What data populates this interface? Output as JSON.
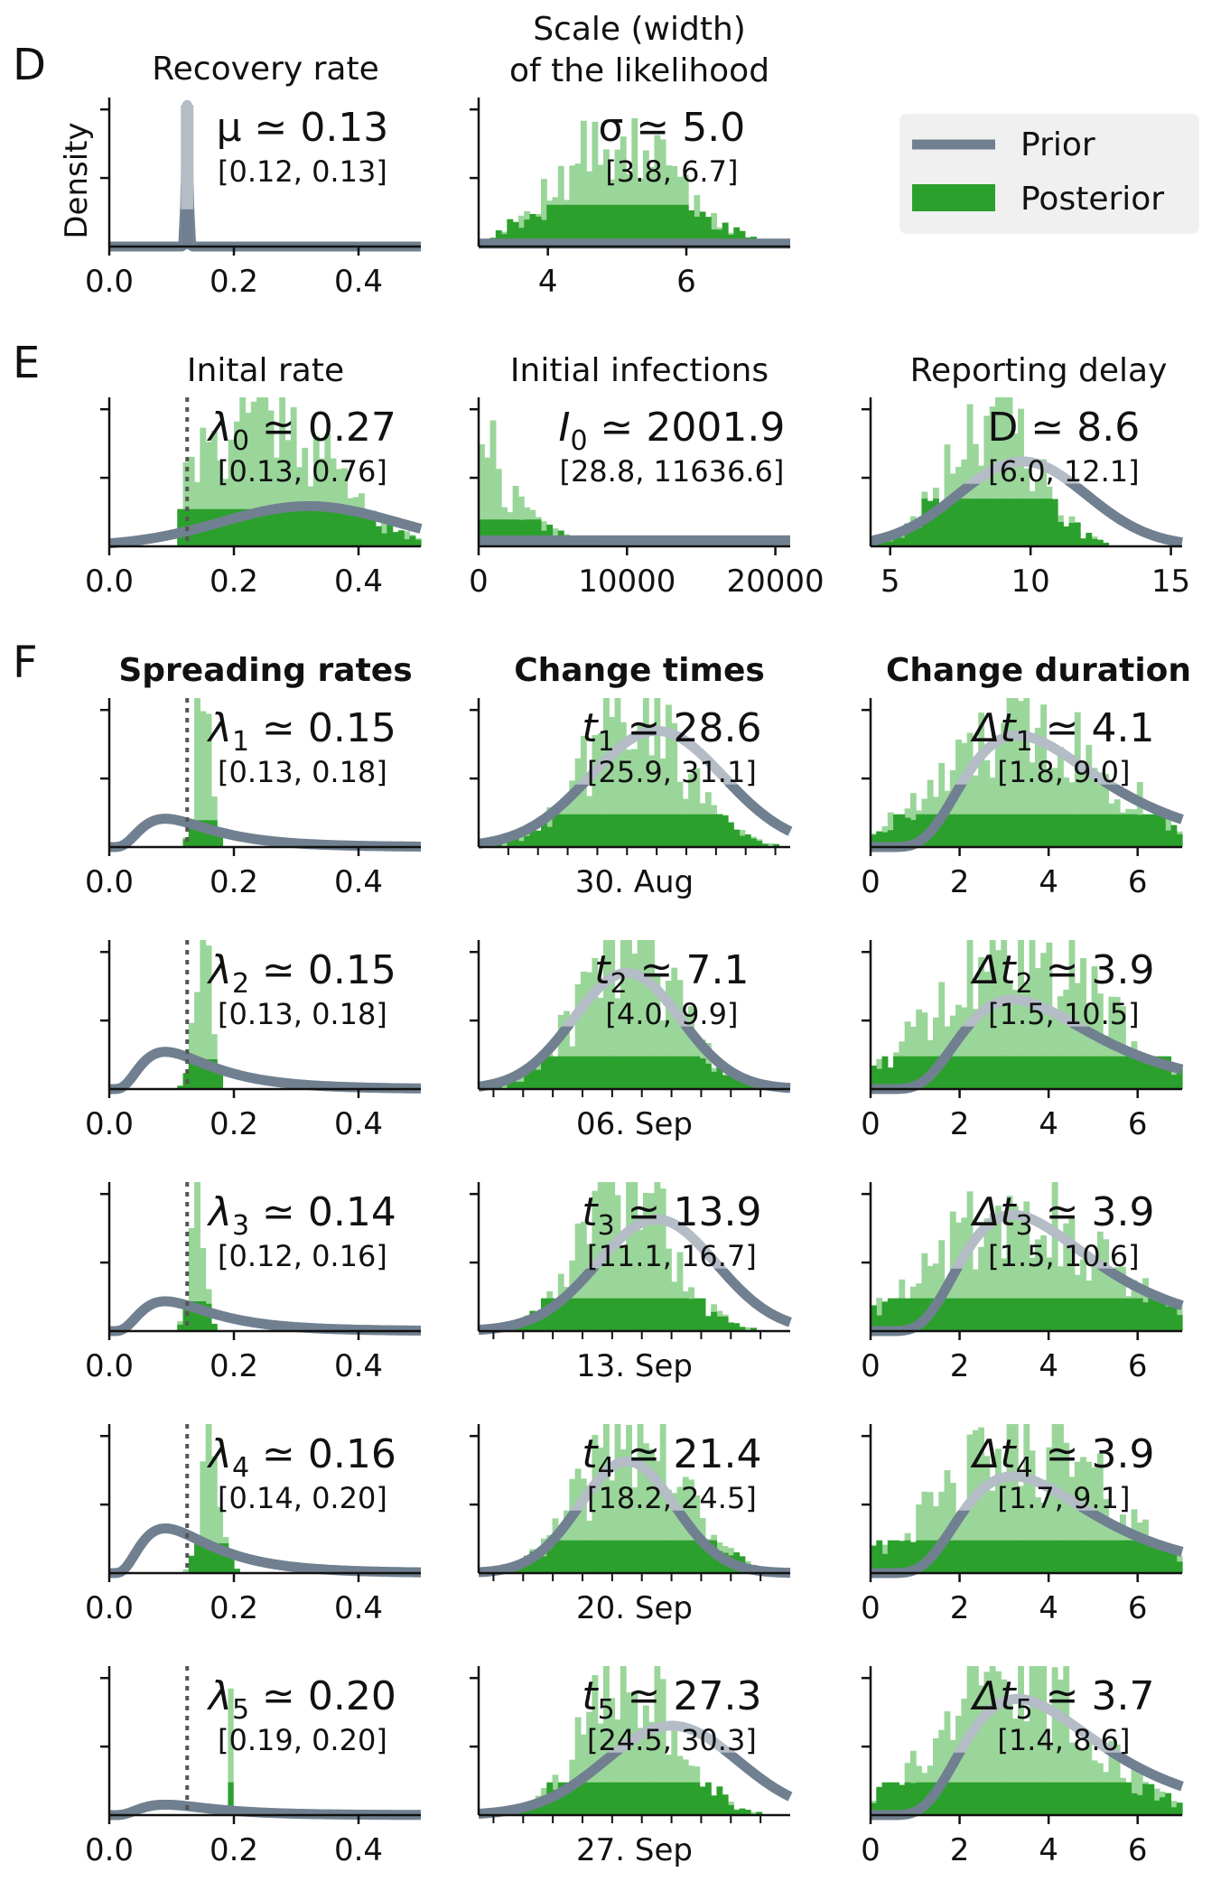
{
  "colors": {
    "prior": "#708090",
    "prior_light": "#b4bcc6",
    "posterior": "#2ca02c",
    "posterior_light": "#9ad69a",
    "marker": "#555555",
    "legend_bg": "#f0f0f0"
  },
  "panel_letters": [
    "D",
    "E",
    "F"
  ],
  "legend": {
    "prior_label": "Prior",
    "posterior_label": "Posterior"
  },
  "chart_data": [
    {
      "id": "recovery",
      "type": "histogram+density",
      "title": "Recovery rate",
      "ylabel": "Density",
      "estimate_label": "μ ≃ 0.13",
      "interval_label": "[0.12, 0.13]",
      "xlim": [
        0,
        0.5
      ],
      "xticks": [
        0.0,
        0.2,
        0.4
      ],
      "xtick_labels": [
        "0.0",
        "0.2",
        "0.4"
      ],
      "prior": {
        "kind": "spike",
        "mean": 0.125,
        "sd": 0.002,
        "peak": 0.95
      },
      "posterior": {
        "kind": "spike",
        "x": 0.125,
        "height": 0.25
      }
    },
    {
      "id": "scale",
      "type": "histogram+density",
      "title_lines": [
        "Scale (width)",
        "of the likelihood"
      ],
      "estimate_label": "σ ≃ 5.0",
      "interval_label": "[3.8, 6.7]",
      "xlim": [
        3.0,
        7.5
      ],
      "xticks": [
        4,
        6
      ],
      "xtick_labels": [
        "4",
        "6"
      ],
      "prior": {
        "kind": "flat",
        "level": 0.02
      },
      "posterior": {
        "kind": "hist",
        "mean": 5.0,
        "sd": 0.85,
        "peak": 0.7,
        "threshold": 0.28
      }
    },
    {
      "id": "initial-rate",
      "type": "histogram+density",
      "title": "Inital rate",
      "estimate_label": "λ0 ≃ 0.27",
      "estimate_main": "λ",
      "estimate_sub": "0",
      "estimate_value": " ≃ 0.27",
      "interval_label": "[0.13, 0.76]",
      "xlim": [
        0,
        0.5
      ],
      "xticks": [
        0.0,
        0.2,
        0.4
      ],
      "xtick_labels": [
        "0.0",
        "0.2",
        "0.4"
      ],
      "marker_x": 0.125,
      "prior": {
        "kind": "gauss",
        "mean": 0.32,
        "sd": 0.14,
        "peak": 0.27
      },
      "posterior": {
        "kind": "hist",
        "mean": 0.25,
        "sd": 0.1,
        "peak": 0.95,
        "threshold": 0.25,
        "min": 0.11
      }
    },
    {
      "id": "initial-infections",
      "type": "histogram+density",
      "title": "Initial infections",
      "estimate_label": "I0 ≃ 2001.9",
      "estimate_main": "I",
      "estimate_sub": "0",
      "estimate_value": " ≃ 2001.9",
      "interval_label": "[28.8, 11636.6]",
      "xlim": [
        0,
        21000
      ],
      "xticks": [
        0,
        10000,
        20000
      ],
      "xtick_labels": [
        "0",
        "10000",
        "20000"
      ],
      "prior": {
        "kind": "flat",
        "level": 0.04
      },
      "posterior": {
        "kind": "exp",
        "scale": 2200,
        "peak": 0.97,
        "threshold": 0.18
      }
    },
    {
      "id": "reporting-delay",
      "type": "histogram+density",
      "title": "Reporting delay",
      "estimate_label": "D ≃ 8.6",
      "interval_label": "[6.0, 12.1]",
      "xlim": [
        4.3,
        15.4
      ],
      "xticks": [
        5,
        10,
        15
      ],
      "xtick_labels": [
        "5",
        "10",
        "15"
      ],
      "prior": {
        "kind": "gauss",
        "mean": 9.7,
        "sd": 2.3,
        "peak": 0.57
      },
      "posterior": {
        "kind": "hist",
        "mean": 8.6,
        "sd": 1.5,
        "peak": 0.95,
        "threshold": 0.32
      }
    }
  ],
  "column_headers": [
    "Spreading rates",
    "Change times",
    "Change duration"
  ],
  "rows": [
    {
      "rate": {
        "estimate_main": "λ",
        "estimate_sub": "1",
        "estimate_value": " ≃ 0.15",
        "interval_label": "[0.13, 0.18]",
        "xtick_labels": [
          "0.0",
          "0.2",
          "0.4"
        ],
        "xticks": [
          0.0,
          0.2,
          0.4
        ],
        "xlim": [
          0,
          0.5
        ],
        "marker_x": 0.125,
        "prior": {
          "kind": "logn",
          "mode": 0.09,
          "spread": 0.6,
          "peak": 0.19
        },
        "posterior": {
          "kind": "hist",
          "mean": 0.15,
          "sd": 0.012,
          "peak": 0.95,
          "threshold": 0.18
        }
      },
      "time": {
        "estimate_main": "t",
        "estimate_sub": "1",
        "estimate_value": " ≃ 28.6",
        "interval_label": "[25.9, 31.1]",
        "date_label": "30. Aug",
        "xlim": [
          18,
          39
        ],
        "minor_ticks": [
          20,
          22,
          24,
          26,
          28,
          30,
          32,
          34,
          36,
          38
        ],
        "prior": {
          "kind": "gauss",
          "mean": 30.0,
          "sd": 4.5,
          "peak": 0.78
        },
        "posterior": {
          "kind": "hist",
          "mean": 28.6,
          "sd": 3.3,
          "peak": 0.95,
          "threshold": 0.22
        }
      },
      "duration": {
        "estimate_main": "Δt",
        "estimate_sub": "1",
        "estimate_value": " ≃ 4.1",
        "interval_label": "[1.8, 9.0]",
        "xlim": [
          0,
          7
        ],
        "xticks": [
          0,
          2,
          4,
          6
        ],
        "xtick_labels": [
          "0",
          "2",
          "4",
          "6"
        ],
        "prior": {
          "kind": "logn",
          "mode": 3.3,
          "spread": 0.45,
          "peak": 0.75
        },
        "posterior": {
          "kind": "hist",
          "mean": 3.6,
          "sd": 1.8,
          "peak": 0.8,
          "threshold": 0.22
        }
      }
    },
    {
      "rate": {
        "estimate_main": "λ",
        "estimate_sub": "2",
        "estimate_value": " ≃ 0.15",
        "interval_label": "[0.13, 0.18]",
        "xtick_labels": [
          "0.0",
          "0.2",
          "0.4"
        ],
        "xticks": [
          0.0,
          0.2,
          0.4
        ],
        "xlim": [
          0,
          0.5
        ],
        "marker_x": 0.125,
        "prior": {
          "kind": "logn",
          "mode": 0.09,
          "spread": 0.6,
          "peak": 0.25
        },
        "posterior": {
          "kind": "hist",
          "mean": 0.15,
          "sd": 0.013,
          "peak": 0.95,
          "threshold": 0.2
        }
      },
      "time": {
        "estimate_main": "t",
        "estimate_sub": "2",
        "estimate_value": " ≃ 7.1",
        "interval_label": "[4.0, 9.9]",
        "date_label": "06. Sep",
        "xlim": [
          -3,
          18
        ],
        "minor_ticks": [
          -2,
          0,
          2,
          4,
          6,
          8,
          10,
          12,
          14,
          16
        ],
        "prior": {
          "kind": "gauss",
          "mean": 7.0,
          "sd": 3.6,
          "peak": 0.78
        },
        "posterior": {
          "kind": "hist",
          "mean": 7.1,
          "sd": 3.2,
          "peak": 0.95,
          "threshold": 0.22
        }
      },
      "duration": {
        "estimate_main": "Δt",
        "estimate_sub": "2",
        "estimate_value": " ≃ 3.9",
        "interval_label": "[1.5, 10.5]",
        "xlim": [
          0,
          7
        ],
        "xticks": [
          0,
          2,
          4,
          6
        ],
        "xtick_labels": [
          "0",
          "2",
          "4",
          "6"
        ],
        "prior": {
          "kind": "logn",
          "mode": 3.2,
          "spread": 0.45,
          "peak": 0.6
        },
        "posterior": {
          "kind": "hist",
          "mean": 3.4,
          "sd": 1.8,
          "peak": 0.95,
          "threshold": 0.22
        }
      }
    },
    {
      "rate": {
        "estimate_main": "λ",
        "estimate_sub": "3",
        "estimate_value": " ≃ 0.14",
        "interval_label": "[0.12, 0.16]",
        "xtick_labels": [
          "0.0",
          "0.2",
          "0.4"
        ],
        "xticks": [
          0.0,
          0.2,
          0.4
        ],
        "xlim": [
          0,
          0.5
        ],
        "marker_x": 0.125,
        "prior": {
          "kind": "logn",
          "mode": 0.09,
          "spread": 0.6,
          "peak": 0.2
        },
        "posterior": {
          "kind": "hist",
          "mean": 0.14,
          "sd": 0.011,
          "peak": 0.95,
          "threshold": 0.2
        }
      },
      "time": {
        "estimate_main": "t",
        "estimate_sub": "3",
        "estimate_value": " ≃ 13.9",
        "interval_label": "[11.1, 16.7]",
        "date_label": "13. Sep",
        "xlim": [
          4,
          25
        ],
        "minor_ticks": [
          5,
          7,
          9,
          11,
          13,
          15,
          17,
          19,
          21,
          23
        ],
        "prior": {
          "kind": "gauss",
          "mean": 16.0,
          "sd": 4.0,
          "peak": 0.75
        },
        "posterior": {
          "kind": "hist",
          "mean": 13.9,
          "sd": 3.0,
          "peak": 0.95,
          "threshold": 0.22
        }
      },
      "duration": {
        "estimate_main": "Δt",
        "estimate_sub": "3",
        "estimate_value": " ≃ 3.9",
        "interval_label": "[1.5, 10.6]",
        "xlim": [
          0,
          7
        ],
        "xticks": [
          0,
          2,
          4,
          6
        ],
        "xtick_labels": [
          "0",
          "2",
          "4",
          "6"
        ],
        "prior": {
          "kind": "logn",
          "mode": 3.2,
          "spread": 0.45,
          "peak": 0.78
        },
        "posterior": {
          "kind": "hist",
          "mean": 3.4,
          "sd": 1.8,
          "peak": 0.85,
          "threshold": 0.22
        }
      }
    },
    {
      "rate": {
        "estimate_main": "λ",
        "estimate_sub": "4",
        "estimate_value": " ≃ 0.16",
        "interval_label": "[0.14, 0.20]",
        "xtick_labels": [
          "0.0",
          "0.2",
          "0.4"
        ],
        "xticks": [
          0.0,
          0.2,
          0.4
        ],
        "xlim": [
          0,
          0.5
        ],
        "marker_x": 0.125,
        "prior": {
          "kind": "logn",
          "mode": 0.09,
          "spread": 0.6,
          "peak": 0.3
        },
        "posterior": {
          "kind": "hist",
          "mean": 0.165,
          "sd": 0.015,
          "peak": 0.95,
          "threshold": 0.2
        }
      },
      "time": {
        "estimate_main": "t",
        "estimate_sub": "4",
        "estimate_value": " ≃ 21.4",
        "interval_label": "[18.2, 24.5]",
        "date_label": "20. Sep",
        "xlim": [
          11,
          32
        ],
        "minor_ticks": [
          12,
          14,
          16,
          18,
          20,
          22,
          24,
          26,
          28,
          30
        ],
        "prior": {
          "kind": "gauss",
          "mean": 21.0,
          "sd": 3.2,
          "peak": 0.75
        },
        "posterior": {
          "kind": "hist",
          "mean": 21.4,
          "sd": 3.3,
          "peak": 0.95,
          "threshold": 0.22
        }
      },
      "duration": {
        "estimate_main": "Δt",
        "estimate_sub": "4",
        "estimate_value": " ≃ 3.9",
        "interval_label": "[1.7, 9.1]",
        "xlim": [
          0,
          7
        ],
        "xticks": [
          0,
          2,
          4,
          6
        ],
        "xtick_labels": [
          "0",
          "2",
          "4",
          "6"
        ],
        "prior": {
          "kind": "logn",
          "mode": 3.2,
          "spread": 0.45,
          "peak": 0.65
        },
        "posterior": {
          "kind": "hist",
          "mean": 3.5,
          "sd": 1.8,
          "peak": 0.85,
          "threshold": 0.22
        }
      }
    },
    {
      "rate": {
        "estimate_main": "λ",
        "estimate_sub": "5",
        "estimate_value": " ≃ 0.20",
        "interval_label": "[0.19, 0.20]",
        "xtick_labels": [
          "0.0",
          "0.2",
          "0.4"
        ],
        "xticks": [
          0.0,
          0.2,
          0.4
        ],
        "xlim": [
          0,
          0.5
        ],
        "marker_x": 0.125,
        "prior": {
          "kind": "logn",
          "mode": 0.09,
          "spread": 0.6,
          "peak": 0.07
        },
        "posterior": {
          "kind": "spike",
          "x": 0.195,
          "height": 0.85
        }
      },
      "time": {
        "estimate_main": "t",
        "estimate_sub": "5",
        "estimate_value": " ≃ 27.3",
        "interval_label": "[24.5, 30.3]",
        "date_label": "27. Sep",
        "xlim": [
          17,
          38
        ],
        "minor_ticks": [
          18,
          20,
          22,
          24,
          26,
          28,
          30,
          32,
          34,
          36
        ],
        "prior": {
          "kind": "gauss",
          "mean": 30.0,
          "sd": 4.5,
          "peak": 0.6
        },
        "posterior": {
          "kind": "hist",
          "mean": 27.3,
          "sd": 3.0,
          "peak": 0.95,
          "threshold": 0.22
        }
      },
      "duration": {
        "estimate_main": "Δt",
        "estimate_sub": "5",
        "estimate_value": " ≃ 3.7",
        "interval_label": "[1.4, 8.6]",
        "xlim": [
          0,
          7
        ],
        "xticks": [
          0,
          2,
          4,
          6
        ],
        "xtick_labels": [
          "0",
          "2",
          "4",
          "6"
        ],
        "prior": {
          "kind": "logn",
          "mode": 3.3,
          "spread": 0.45,
          "peak": 0.78
        },
        "posterior": {
          "kind": "hist",
          "mean": 3.3,
          "sd": 1.6,
          "peak": 0.95,
          "threshold": 0.22
        }
      }
    }
  ]
}
